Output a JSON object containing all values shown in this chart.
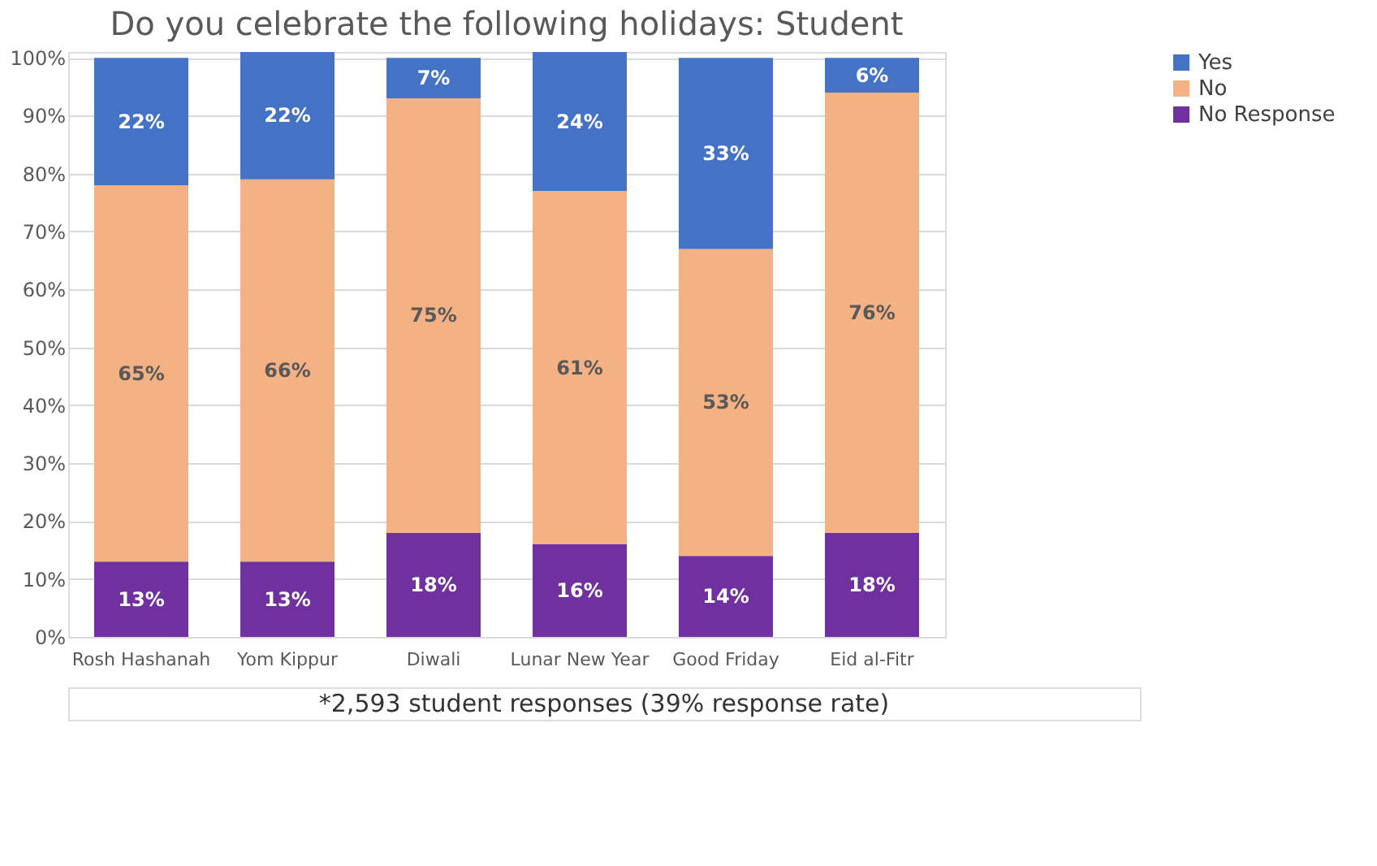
{
  "chart_data": {
    "type": "bar",
    "title": "Do you celebrate the following holidays: Student",
    "stacked": true,
    "grid": "y",
    "legend": "right",
    "categories": [
      "Rosh Hashanah",
      "Yom Kippur",
      "Diwali",
      "Lunar New Year",
      "Good Friday",
      "Eid al-Fitr"
    ],
    "series": [
      {
        "name": "No Response",
        "color": "#7030a0",
        "values": [
          13,
          13,
          18,
          16,
          14,
          18
        ],
        "value_labels": [
          "13%",
          "13%",
          "18%",
          "16%",
          "14%",
          "18%"
        ]
      },
      {
        "name": "No",
        "color": "#f4b183",
        "values": [
          65,
          66,
          75,
          61,
          53,
          76
        ],
        "value_labels": [
          "65%",
          "66%",
          "75%",
          "61%",
          "53%",
          "76%"
        ]
      },
      {
        "name": "Yes",
        "color": "#4472c4",
        "values": [
          22,
          22,
          7,
          24,
          33,
          6
        ],
        "value_labels": [
          "22%",
          "22%",
          "7%",
          "24%",
          "33%",
          "6%"
        ]
      }
    ],
    "ylim": [
      0,
      101
    ],
    "yticks": [
      {
        "value": 0,
        "label": "0%"
      },
      {
        "value": 10,
        "label": "10%"
      },
      {
        "value": 20,
        "label": "20%"
      },
      {
        "value": 30,
        "label": "30%"
      },
      {
        "value": 40,
        "label": "40%"
      },
      {
        "value": 50,
        "label": "50%"
      },
      {
        "value": 60,
        "label": "60%"
      },
      {
        "value": 70,
        "label": "70%"
      },
      {
        "value": 80,
        "label": "80%"
      },
      {
        "value": 90,
        "label": "90%"
      },
      {
        "value": 100,
        "label": "100%"
      }
    ],
    "annotations": [
      "*2,593 student responses (39% response rate)"
    ]
  }
}
